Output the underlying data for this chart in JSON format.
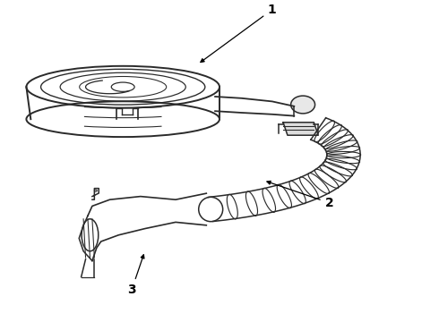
{
  "background_color": "#ffffff",
  "line_color": "#2a2a2a",
  "label_color": "#000000",
  "lw": 1.1,
  "labels": {
    "1": [
      0.62,
      0.97
    ],
    "2": [
      0.75,
      0.37
    ],
    "3": [
      0.3,
      0.1
    ]
  },
  "arrow_tips": {
    "1": [
      0.45,
      0.8
    ],
    "2": [
      0.6,
      0.44
    ],
    "3": [
      0.33,
      0.22
    ]
  }
}
